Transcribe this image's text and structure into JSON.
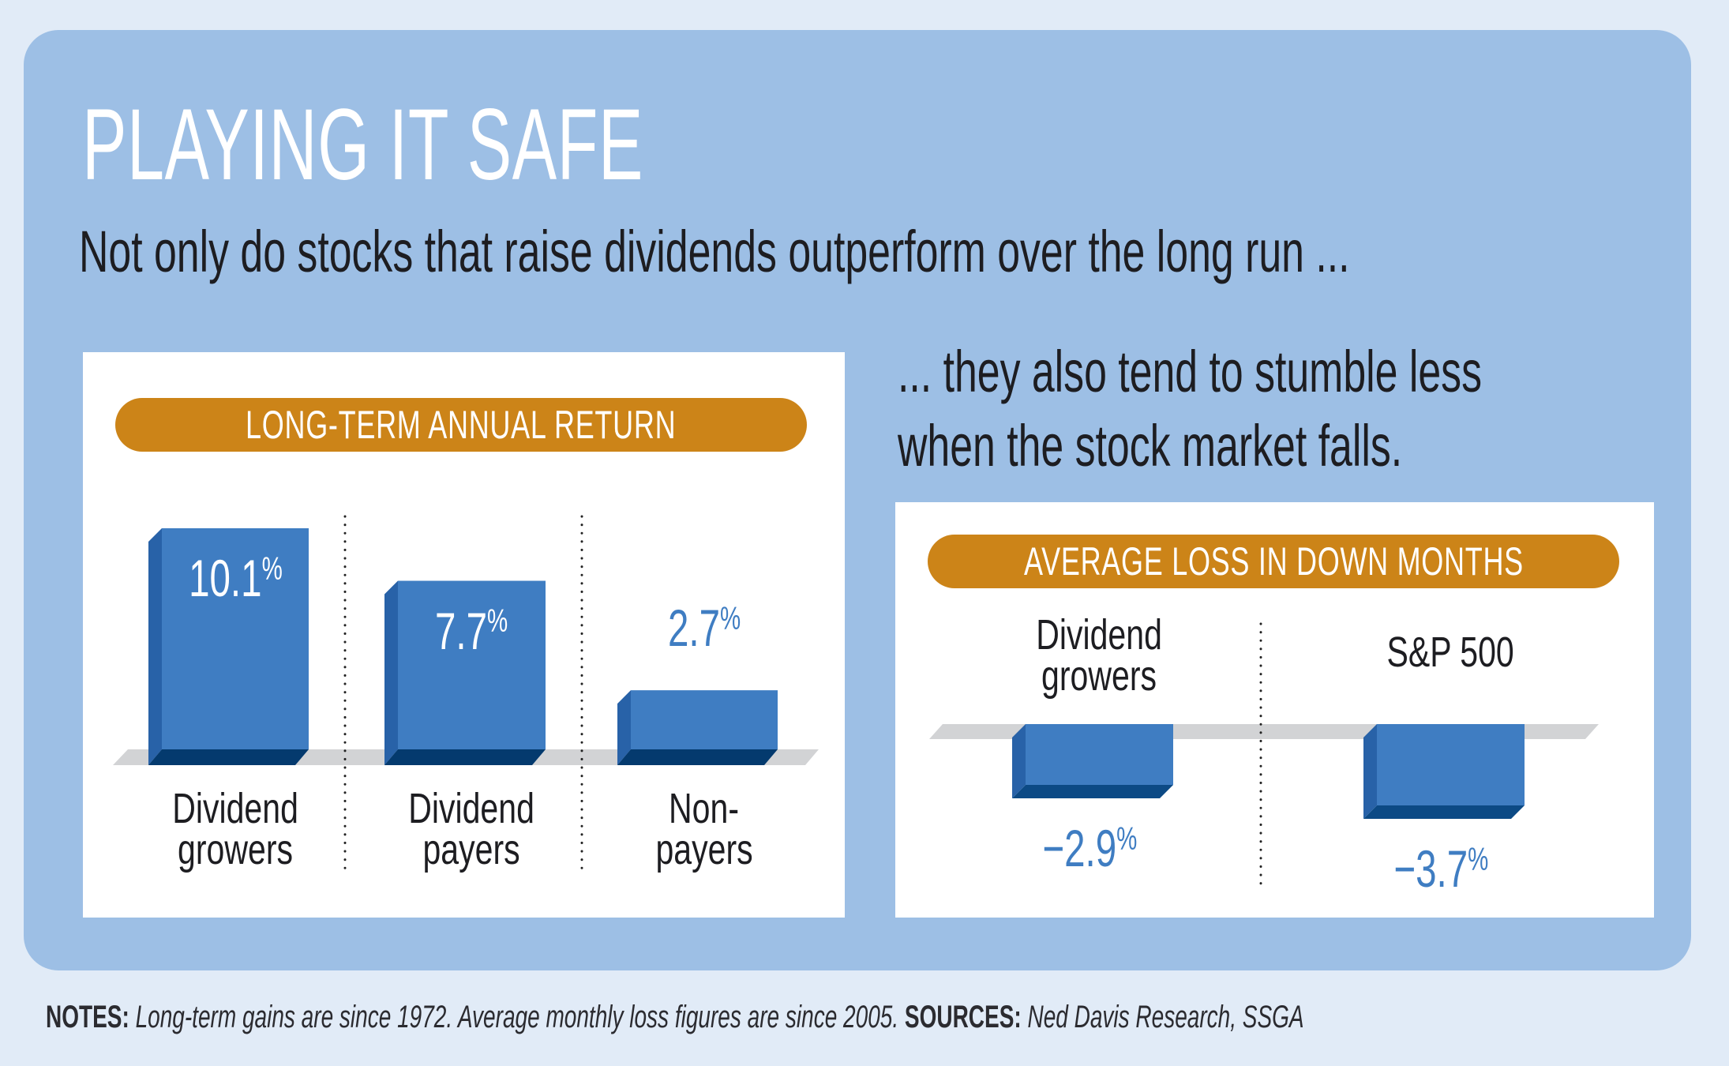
{
  "title": "PLAYING IT SAFE",
  "subtitle": "Not only do stocks that raise dividends outperform over the long run ...",
  "aside": {
    "line1": "... they also tend to stumble less",
    "line2": "when the stock market falls."
  },
  "colors": {
    "page_bg": "#E1EBF7",
    "card_bg": "#9DBFE5",
    "pill": "#CC8418",
    "bar_face": "#3F7DC2",
    "bar_side": "#2862A8",
    "bar_base": "#043A6E",
    "floor": "#D2D3D5",
    "value_text": "#3F7DC2"
  },
  "chart_data": [
    {
      "type": "bar",
      "title": "LONG-TERM ANNUAL RETURN",
      "categories": [
        "Dividend growers",
        "Dividend payers",
        "Non-payers"
      ],
      "category_lines": [
        [
          "Dividend",
          "growers"
        ],
        [
          "Dividend",
          "payers"
        ],
        [
          "Non-",
          "payers"
        ]
      ],
      "values": [
        10.1,
        7.7,
        2.7
      ],
      "value_labels": [
        "10.1",
        "7.7",
        "2.7"
      ],
      "unit": "%",
      "xlabel": "",
      "ylabel": "",
      "ylim": [
        0,
        10.1
      ],
      "grid": false,
      "legend": "none"
    },
    {
      "type": "bar",
      "title": "AVERAGE LOSS IN DOWN MONTHS",
      "categories": [
        "Dividend growers",
        "S&P 500"
      ],
      "category_lines": [
        [
          "Dividend",
          "growers"
        ],
        [
          "S&P 500"
        ]
      ],
      "values": [
        -2.9,
        -3.7
      ],
      "value_labels": [
        "−2.9",
        "−3.7"
      ],
      "unit": "%",
      "xlabel": "",
      "ylabel": "",
      "ylim": [
        -3.7,
        0
      ],
      "grid": false,
      "legend": "none"
    }
  ],
  "notes": {
    "notes_label": "NOTES:",
    "notes_text": " Long-term gains are since 1972. Average monthly loss figures are since 2005. ",
    "sources_label": "SOURCES:",
    "sources_text": " Ned Davis Research, SSGA"
  }
}
